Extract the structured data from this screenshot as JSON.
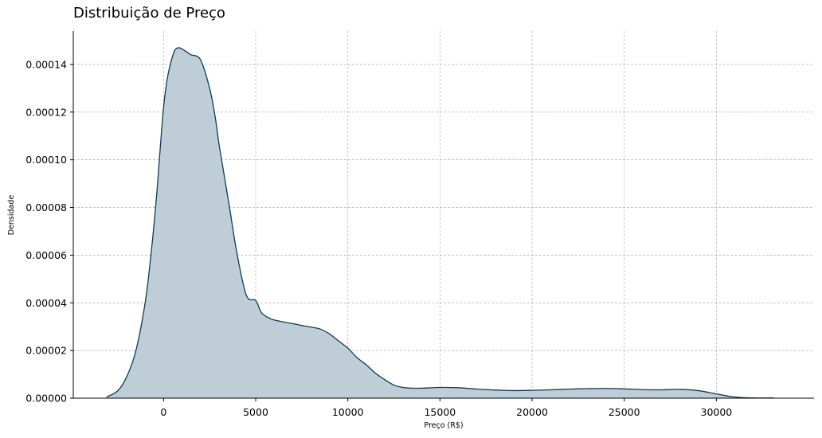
{
  "chart_data": {
    "type": "area",
    "title": "Distribuição de Preço",
    "xlabel": "Preço (R$)",
    "ylabel": "Densidade",
    "xlim": [
      -4900,
      35300
    ],
    "ylim": [
      0,
      0.000154
    ],
    "grid": true,
    "x_ticks": [
      0,
      5000,
      10000,
      15000,
      20000,
      25000,
      30000
    ],
    "x_tick_labels": [
      "0",
      "5000",
      "10000",
      "15000",
      "20000",
      "25000",
      "30000"
    ],
    "y_ticks": [
      0,
      2e-05,
      4e-05,
      6e-05,
      8e-05,
      0.0001,
      0.00012,
      0.00014
    ],
    "y_tick_labels": [
      "0.00000",
      "0.00002",
      "0.00004",
      "0.00006",
      "0.00008",
      "0.00010",
      "0.00012",
      "0.00014"
    ],
    "line_color": "#0b3d5c",
    "fill_color": "#bfcdd6",
    "series": [
      {
        "x": [
          -3100,
          -2500,
          -2000,
          -1500,
          -1000,
          -700,
          -400,
          -200,
          0,
          200,
          400,
          600,
          800,
          1000,
          1200,
          1500,
          2000,
          2500,
          2800,
          3000,
          3300,
          3600,
          4000,
          4500,
          5000,
          5300,
          5700,
          6000,
          6500,
          7000,
          7500,
          8000,
          8500,
          9000,
          9500,
          10000,
          10500,
          11000,
          11500,
          12000,
          12500,
          13000,
          13500,
          14000,
          15000,
          16000,
          17000,
          18000,
          19000,
          20000,
          21000,
          22000,
          23000,
          24000,
          25000,
          26000,
          27000,
          28000,
          29000,
          30000,
          31000,
          32000,
          33100
        ],
        "y": [
          5e-07,
          3e-06,
          9e-06,
          2e-05,
          4e-05,
          5.9e-05,
          8.3e-05,
          0.000103,
          0.000122,
          0.000134,
          0.000141,
          0.0001458,
          0.000147,
          0.0001465,
          0.0001455,
          0.000144,
          0.000142,
          0.00013,
          0.000118,
          0.000107,
          9.3e-05,
          7.9e-05,
          6e-05,
          4.3e-05,
          4.1e-05,
          3.6e-05,
          3.37e-05,
          3.28e-05,
          3.2e-05,
          3.13e-05,
          3.05e-05,
          2.98e-05,
          2.9e-05,
          2.7e-05,
          2.4e-05,
          2.1e-05,
          1.7e-05,
          1.4e-05,
          1.05e-05,
          7.8e-06,
          5.5e-06,
          4.5e-06,
          4.2e-06,
          4.2e-06,
          4.5e-06,
          4.4e-06,
          3.8e-06,
          3.4e-06,
          3.2e-06,
          3.3e-06,
          3.5e-06,
          3.8e-06,
          4e-06,
          4.1e-06,
          3.9e-06,
          3.6e-06,
          3.5e-06,
          3.7e-06,
          3.2e-06,
          1.8e-06,
          5e-07,
          1e-07,
          1e-07
        ]
      }
    ]
  }
}
